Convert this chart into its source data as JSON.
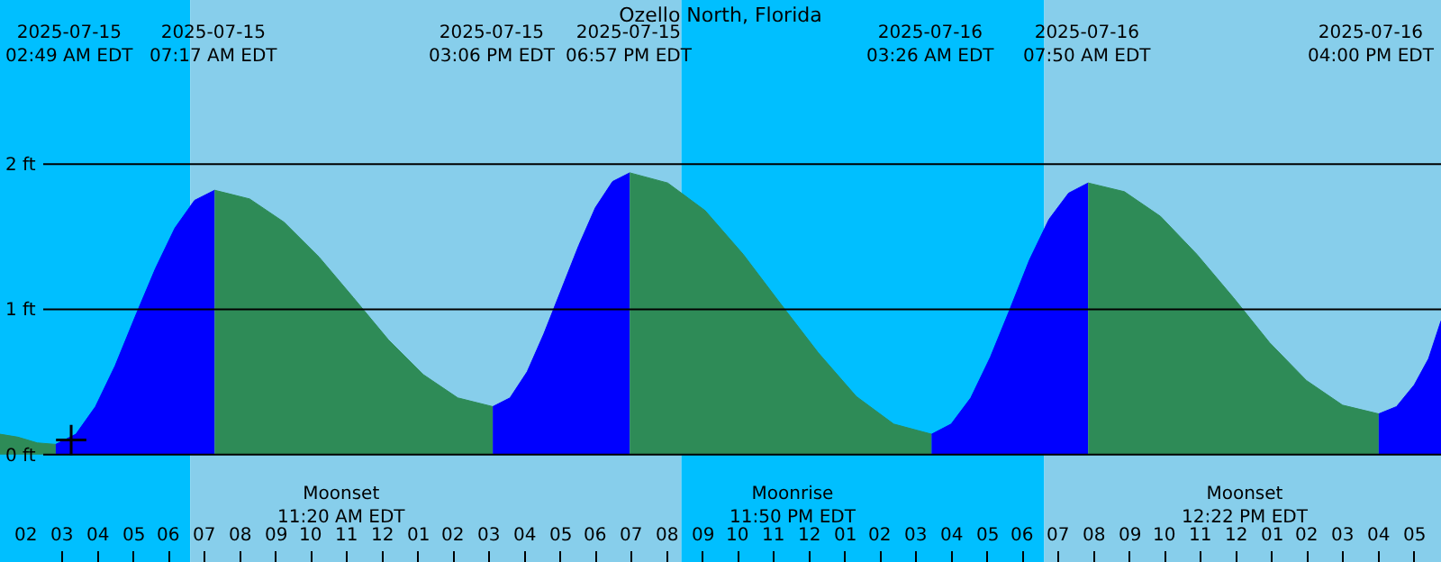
{
  "chart_data": {
    "type": "area",
    "title": "Ozello North, Florida",
    "xlim": [
      "2025-07-15T01:15",
      "2025-07-16T17:45"
    ],
    "ylim": [
      -0.74,
      3.13
    ],
    "xticks": [
      {
        "value": "2025-07-15T02:00",
        "label": "02"
      },
      {
        "value": "2025-07-15T03:00",
        "label": "03"
      },
      {
        "value": "2025-07-15T04:00",
        "label": "04"
      },
      {
        "value": "2025-07-15T05:00",
        "label": "05"
      },
      {
        "value": "2025-07-15T06:00",
        "label": "06"
      },
      {
        "value": "2025-07-15T07:00",
        "label": "07"
      },
      {
        "value": "2025-07-15T08:00",
        "label": "08"
      },
      {
        "value": "2025-07-15T09:00",
        "label": "09"
      },
      {
        "value": "2025-07-15T10:00",
        "label": "10"
      },
      {
        "value": "2025-07-15T11:00",
        "label": "11"
      },
      {
        "value": "2025-07-15T12:00",
        "label": "12"
      },
      {
        "value": "2025-07-15T13:00",
        "label": "01"
      },
      {
        "value": "2025-07-15T14:00",
        "label": "02"
      },
      {
        "value": "2025-07-15T15:00",
        "label": "03"
      },
      {
        "value": "2025-07-15T16:00",
        "label": "04"
      },
      {
        "value": "2025-07-15T17:00",
        "label": "05"
      },
      {
        "value": "2025-07-15T18:00",
        "label": "06"
      },
      {
        "value": "2025-07-15T19:00",
        "label": "07"
      },
      {
        "value": "2025-07-15T20:00",
        "label": "08"
      },
      {
        "value": "2025-07-15T21:00",
        "label": "09"
      },
      {
        "value": "2025-07-15T22:00",
        "label": "10"
      },
      {
        "value": "2025-07-15T23:00",
        "label": "11"
      },
      {
        "value": "2025-07-16T00:00",
        "label": "12"
      },
      {
        "value": "2025-07-16T01:00",
        "label": "01"
      },
      {
        "value": "2025-07-16T02:00",
        "label": "02"
      },
      {
        "value": "2025-07-16T03:00",
        "label": "03"
      },
      {
        "value": "2025-07-16T04:00",
        "label": "04"
      },
      {
        "value": "2025-07-16T05:00",
        "label": "05"
      },
      {
        "value": "2025-07-16T06:00",
        "label": "06"
      },
      {
        "value": "2025-07-16T07:00",
        "label": "07"
      },
      {
        "value": "2025-07-16T08:00",
        "label": "08"
      },
      {
        "value": "2025-07-16T09:00",
        "label": "09"
      },
      {
        "value": "2025-07-16T10:00",
        "label": "10"
      },
      {
        "value": "2025-07-16T11:00",
        "label": "11"
      },
      {
        "value": "2025-07-16T12:00",
        "label": "12"
      },
      {
        "value": "2025-07-16T13:00",
        "label": "01"
      },
      {
        "value": "2025-07-16T14:00",
        "label": "02"
      },
      {
        "value": "2025-07-16T15:00",
        "label": "03"
      },
      {
        "value": "2025-07-16T16:00",
        "label": "04"
      },
      {
        "value": "2025-07-16T17:00",
        "label": "05"
      }
    ],
    "yticks": [
      {
        "value": 0,
        "label": "0 ft"
      },
      {
        "value": 1,
        "label": "1 ft"
      },
      {
        "value": 2,
        "label": "2 ft"
      }
    ],
    "grid": "y",
    "bands": [
      {
        "axis": "x",
        "from": "2025-07-15T01:15",
        "to": "2025-07-15T06:36",
        "color": "#00bfff"
      },
      {
        "axis": "x",
        "from": "2025-07-15T06:36",
        "to": "2025-07-15T20:24",
        "color": "#87ceeb"
      },
      {
        "axis": "x",
        "from": "2025-07-15T20:24",
        "to": "2025-07-16T06:36",
        "color": "#00bfff"
      },
      {
        "axis": "x",
        "from": "2025-07-16T06:36",
        "to": "2025-07-16T17:45",
        "color": "#87ceeb"
      }
    ],
    "series": [
      {
        "color": "#2e8b57",
        "x": [
          "2025-07-15T01:15",
          "2025-07-15T01:45",
          "2025-07-15T02:18",
          "2025-07-15T02:49"
        ],
        "values": [
          0.14,
          0.12,
          0.08,
          0.07
        ]
      },
      {
        "color": "#0000ff",
        "x": [
          "2025-07-15T02:49",
          "2025-07-15T03:23",
          "2025-07-15T03:56",
          "2025-07-15T04:29",
          "2025-07-15T05:03",
          "2025-07-15T05:37",
          "2025-07-15T06:10",
          "2025-07-15T06:43",
          "2025-07-15T07:17"
        ],
        "values": [
          0.07,
          0.14,
          0.33,
          0.61,
          0.95,
          1.28,
          1.56,
          1.75,
          1.82
        ]
      },
      {
        "color": "#2e8b57",
        "x": [
          "2025-07-15T07:17",
          "2025-07-15T08:16",
          "2025-07-15T09:14",
          "2025-07-15T10:13",
          "2025-07-15T11:11",
          "2025-07-15T12:10",
          "2025-07-15T13:09",
          "2025-07-15T14:07",
          "2025-07-15T15:06"
        ],
        "values": [
          1.82,
          1.76,
          1.6,
          1.36,
          1.08,
          0.79,
          0.55,
          0.39,
          0.33
        ]
      },
      {
        "color": "#0000ff",
        "x": [
          "2025-07-15T15:06",
          "2025-07-15T15:35",
          "2025-07-15T16:04",
          "2025-07-15T16:32",
          "2025-07-15T17:02",
          "2025-07-15T17:31",
          "2025-07-15T17:59",
          "2025-07-15T18:28",
          "2025-07-15T18:57"
        ],
        "values": [
          0.33,
          0.39,
          0.57,
          0.83,
          1.14,
          1.44,
          1.7,
          1.88,
          1.94
        ]
      },
      {
        "color": "#2e8b57",
        "x": [
          "2025-07-15T18:57",
          "2025-07-15T20:01",
          "2025-07-15T21:04",
          "2025-07-15T22:08",
          "2025-07-15T23:11",
          "2025-07-16T00:15",
          "2025-07-16T01:19",
          "2025-07-16T02:22",
          "2025-07-16T03:26"
        ],
        "values": [
          1.94,
          1.87,
          1.68,
          1.38,
          1.04,
          0.7,
          0.4,
          0.21,
          0.14
        ]
      },
      {
        "color": "#0000ff",
        "x": [
          "2025-07-16T03:26",
          "2025-07-16T03:59",
          "2025-07-16T04:32",
          "2025-07-16T05:05",
          "2025-07-16T05:38",
          "2025-07-16T06:11",
          "2025-07-16T06:44",
          "2025-07-16T07:17",
          "2025-07-16T07:50"
        ],
        "values": [
          0.14,
          0.21,
          0.39,
          0.67,
          1.0,
          1.34,
          1.62,
          1.8,
          1.87
        ]
      },
      {
        "color": "#2e8b57",
        "x": [
          "2025-07-16T07:50",
          "2025-07-16T08:51",
          "2025-07-16T09:52",
          "2025-07-16T10:53",
          "2025-07-16T11:55",
          "2025-07-16T12:56",
          "2025-07-16T13:58",
          "2025-07-16T14:59",
          "2025-07-16T16:00"
        ],
        "values": [
          1.87,
          1.81,
          1.64,
          1.38,
          1.08,
          0.77,
          0.51,
          0.34,
          0.28
        ]
      },
      {
        "color": "#0000ff",
        "x": [
          "2025-07-16T16:00",
          "2025-07-16T16:30",
          "2025-07-16T17:00",
          "2025-07-16T17:24",
          "2025-07-16T17:45"
        ],
        "values": [
          0.28,
          0.33,
          0.48,
          0.66,
          0.92
        ]
      },
      {
        "type": "scatter",
        "marker": "cross",
        "color": "#000000",
        "x": [
          "2025-07-15T03:15"
        ],
        "values": [
          0.1
        ]
      }
    ],
    "annotations": [
      "2025-07-15\n02:49 AM EDT",
      "2025-07-15\n07:17 AM EDT",
      "2025-07-15\n03:06 PM EDT",
      "2025-07-15\n06:57 PM EDT",
      "2025-07-16\n03:26 AM EDT",
      "2025-07-16\n07:50 AM EDT",
      "2025-07-16\n04:00 PM EDT",
      "Moonset\n11:20 AM EDT",
      "Moonrise\n11:50 PM EDT",
      "Moonset\n12:22 PM EDT"
    ]
  }
}
